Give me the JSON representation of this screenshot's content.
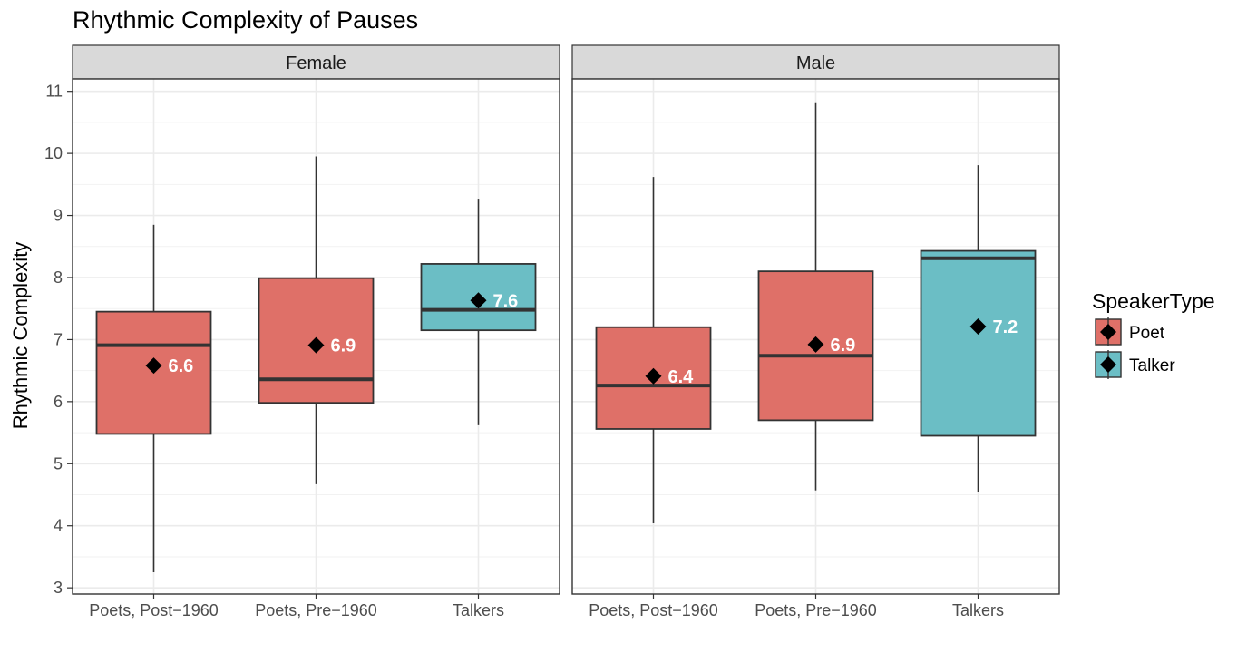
{
  "chart_data": {
    "type": "boxplot",
    "title": "Rhythmic Complexity of Pauses",
    "ylabel": "Rhythmic Complexity",
    "xlabel": "",
    "ylim": [
      2.9,
      11.2
    ],
    "yticks": [
      3,
      4,
      5,
      6,
      7,
      8,
      9,
      10,
      11
    ],
    "grid": true,
    "legend": {
      "title": "SpeakerType",
      "position": "right",
      "entries": [
        {
          "label": "Poet",
          "color": "#df7068"
        },
        {
          "label": "Talker",
          "color": "#6bbec5"
        }
      ]
    },
    "categories": [
      "Poets, Post−1960",
      "Poets, Pre−1960",
      "Talkers"
    ],
    "panels": [
      {
        "facet": "Female",
        "boxes": [
          {
            "category": "Poets, Post−1960",
            "speaker_type": "Poet",
            "whisker_low": 3.25,
            "q1": 5.48,
            "median": 6.91,
            "q3": 7.45,
            "whisker_high": 8.85,
            "mean": 6.58,
            "mean_label": "6.6"
          },
          {
            "category": "Poets, Pre−1960",
            "speaker_type": "Poet",
            "whisker_low": 4.67,
            "q1": 5.98,
            "median": 6.36,
            "q3": 7.99,
            "whisker_high": 9.95,
            "mean": 6.91,
            "mean_label": "6.9"
          },
          {
            "category": "Talkers",
            "speaker_type": "Talker",
            "whisker_low": 5.62,
            "q1": 7.15,
            "median": 7.48,
            "q3": 8.22,
            "whisker_high": 9.27,
            "mean": 7.63,
            "mean_label": "7.6"
          }
        ]
      },
      {
        "facet": "Male",
        "boxes": [
          {
            "category": "Poets, Post−1960",
            "speaker_type": "Poet",
            "whisker_low": 4.04,
            "q1": 5.56,
            "median": 6.26,
            "q3": 7.2,
            "whisker_high": 9.62,
            "mean": 6.41,
            "mean_label": "6.4"
          },
          {
            "category": "Poets, Pre−1960",
            "speaker_type": "Poet",
            "whisker_low": 4.57,
            "q1": 5.7,
            "median": 6.74,
            "q3": 8.1,
            "whisker_high": 10.81,
            "mean": 6.92,
            "mean_label": "6.9"
          },
          {
            "category": "Talkers",
            "speaker_type": "Talker",
            "whisker_low": 4.55,
            "q1": 5.45,
            "median": 8.31,
            "q3": 8.43,
            "whisker_high": 9.81,
            "mean": 7.21,
            "mean_label": "7.2"
          }
        ]
      }
    ]
  }
}
